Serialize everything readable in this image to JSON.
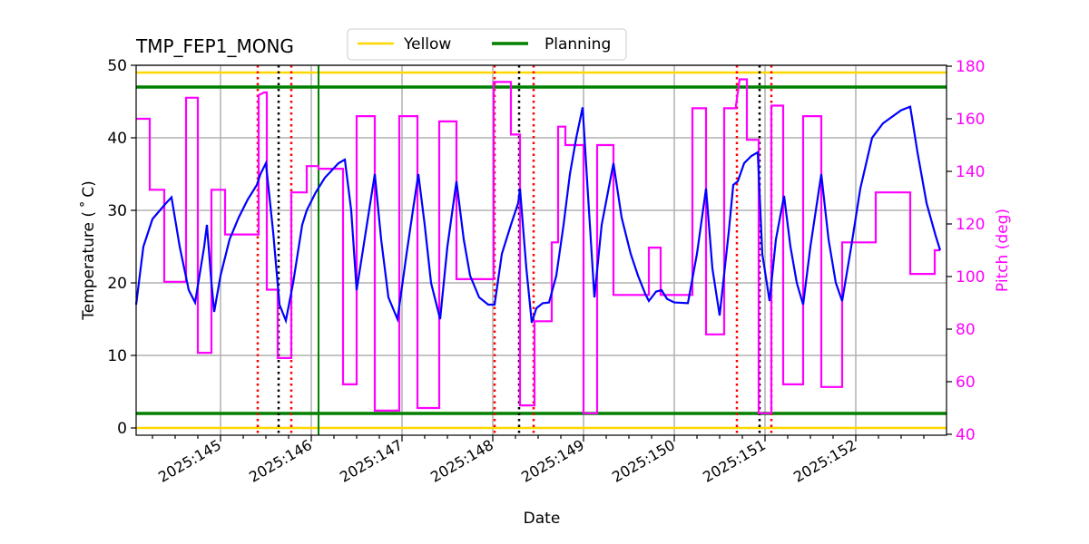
{
  "chart_data": {
    "type": "line",
    "title": "TMP_FEP1_MONG",
    "xlabel": "Date",
    "ylabel": "Temperature ($^\\circ$C)",
    "ylabel_display": "Temperature ( ˚ C)",
    "y2label": "Pitch (deg)",
    "xlim_days": [
      144.07,
      152.93
    ],
    "ylim": [
      -1,
      50
    ],
    "y2lim": [
      40,
      180
    ],
    "x_ticks": [
      "2025:145",
      "2025:146",
      "2025:147",
      "2025:148",
      "2025:149",
      "2025:150",
      "2025:151",
      "2025:152"
    ],
    "x_tick_days": [
      145,
      146,
      147,
      148,
      149,
      150,
      151,
      152
    ],
    "y_ticks": [
      0,
      10,
      20,
      30,
      40,
      50
    ],
    "y2_ticks": [
      40,
      60,
      80,
      100,
      120,
      140,
      160,
      180
    ],
    "grid": true,
    "legend": {
      "position": "top-center",
      "entries": [
        {
          "label": "Yellow",
          "color": "#ffd700"
        },
        {
          "label": "Planning",
          "color": "#008000"
        }
      ]
    },
    "colors": {
      "temperature": "#0000ff",
      "pitch": "#ff00ff",
      "yellow": "#ffd700",
      "planning": "#008000",
      "red_marker": "#ff0000",
      "black_marker": "#000000",
      "grid": "#b0b0b0"
    },
    "limits": {
      "yellow": [
        0,
        49
      ],
      "planning": [
        2,
        47
      ]
    },
    "vertical_markers": {
      "red_dotted_days": [
        145.41,
        145.78,
        148.02,
        148.45,
        150.69,
        151.07
      ],
      "black_dotted_days": [
        145.64,
        148.29,
        150.94
      ],
      "green_solid_days": [
        146.08
      ]
    },
    "series": [
      {
        "name": "Temperature",
        "axis": "left",
        "color": "#0000ff",
        "points": [
          [
            144.07,
            17
          ],
          [
            144.15,
            25
          ],
          [
            144.25,
            28.8
          ],
          [
            144.4,
            31
          ],
          [
            144.46,
            31.8
          ],
          [
            144.55,
            25
          ],
          [
            144.65,
            19
          ],
          [
            144.72,
            17.3
          ],
          [
            144.82,
            25
          ],
          [
            144.85,
            28
          ],
          [
            144.9,
            20
          ],
          [
            144.93,
            16
          ],
          [
            145.0,
            21
          ],
          [
            145.1,
            26
          ],
          [
            145.2,
            29
          ],
          [
            145.3,
            31.5
          ],
          [
            145.4,
            33.5
          ],
          [
            145.44,
            35
          ],
          [
            145.5,
            36.5
          ],
          [
            145.58,
            27
          ],
          [
            145.65,
            17
          ],
          [
            145.72,
            14.8
          ],
          [
            145.8,
            20
          ],
          [
            145.9,
            28
          ],
          [
            145.95,
            30
          ],
          [
            146.05,
            32.5
          ],
          [
            146.15,
            34.5
          ],
          [
            146.3,
            36.5
          ],
          [
            146.37,
            37
          ],
          [
            146.44,
            30
          ],
          [
            146.5,
            19
          ],
          [
            146.6,
            27
          ],
          [
            146.7,
            35
          ],
          [
            146.77,
            26
          ],
          [
            146.85,
            18
          ],
          [
            146.95,
            15
          ],
          [
            147.05,
            24
          ],
          [
            147.12,
            30
          ],
          [
            147.18,
            35
          ],
          [
            147.25,
            28
          ],
          [
            147.32,
            20
          ],
          [
            147.4,
            16
          ],
          [
            147.42,
            15
          ],
          [
            147.5,
            25
          ],
          [
            147.6,
            34
          ],
          [
            147.68,
            26
          ],
          [
            147.75,
            21
          ],
          [
            147.85,
            18
          ],
          [
            147.95,
            17
          ],
          [
            148.02,
            17
          ],
          [
            148.1,
            24
          ],
          [
            148.2,
            28
          ],
          [
            148.28,
            31
          ],
          [
            148.3,
            33
          ],
          [
            148.37,
            22
          ],
          [
            148.43,
            14.5
          ],
          [
            148.48,
            16.5
          ],
          [
            148.55,
            17.2
          ],
          [
            148.62,
            17.3
          ],
          [
            148.7,
            21
          ],
          [
            148.78,
            28
          ],
          [
            148.85,
            35
          ],
          [
            148.92,
            40
          ],
          [
            148.99,
            44.2
          ],
          [
            149.05,
            32
          ],
          [
            149.12,
            18
          ],
          [
            149.2,
            28
          ],
          [
            149.33,
            36.5
          ],
          [
            149.42,
            29
          ],
          [
            149.52,
            24
          ],
          [
            149.6,
            21
          ],
          [
            149.68,
            18.5
          ],
          [
            149.72,
            17.5
          ],
          [
            149.8,
            18.8
          ],
          [
            149.86,
            19
          ],
          [
            149.92,
            17.8
          ],
          [
            150.0,
            17.3
          ],
          [
            150.15,
            17.2
          ],
          [
            150.25,
            24
          ],
          [
            150.35,
            33
          ],
          [
            150.42,
            22
          ],
          [
            150.5,
            15.5
          ],
          [
            150.6,
            27
          ],
          [
            150.65,
            33.5
          ],
          [
            150.7,
            34
          ],
          [
            150.77,
            36.5
          ],
          [
            150.85,
            37.5
          ],
          [
            150.92,
            38
          ],
          [
            150.97,
            24
          ],
          [
            151.05,
            17.5
          ],
          [
            151.12,
            26
          ],
          [
            151.21,
            32
          ],
          [
            151.28,
            25
          ],
          [
            151.35,
            20
          ],
          [
            151.42,
            17
          ],
          [
            151.5,
            25
          ],
          [
            151.62,
            35
          ],
          [
            151.7,
            26
          ],
          [
            151.78,
            20
          ],
          [
            151.85,
            17.5
          ],
          [
            151.95,
            25
          ],
          [
            152.05,
            33
          ],
          [
            152.18,
            40
          ],
          [
            152.3,
            42
          ],
          [
            152.5,
            43.8
          ],
          [
            152.6,
            44.3
          ],
          [
            152.68,
            38
          ],
          [
            152.78,
            31
          ],
          [
            152.88,
            26.5
          ],
          [
            152.93,
            24.5
          ]
        ]
      },
      {
        "name": "Pitch",
        "axis": "right",
        "color": "#ff00ff",
        "points": [
          [
            144.07,
            160
          ],
          [
            144.22,
            160
          ],
          [
            144.22,
            133
          ],
          [
            144.38,
            133
          ],
          [
            144.38,
            98
          ],
          [
            144.62,
            98
          ],
          [
            144.62,
            168
          ],
          [
            144.75,
            168
          ],
          [
            144.75,
            71
          ],
          [
            144.9,
            71
          ],
          [
            144.9,
            133
          ],
          [
            145.05,
            133
          ],
          [
            145.05,
            116
          ],
          [
            145.42,
            116
          ],
          [
            145.42,
            169
          ],
          [
            145.48,
            170
          ],
          [
            145.51,
            170
          ],
          [
            145.51,
            95
          ],
          [
            145.63,
            95
          ],
          [
            145.63,
            69
          ],
          [
            145.78,
            69
          ],
          [
            145.78,
            132
          ],
          [
            145.95,
            132
          ],
          [
            145.95,
            142
          ],
          [
            146.08,
            142
          ],
          [
            146.08,
            141
          ],
          [
            146.35,
            141
          ],
          [
            146.35,
            59
          ],
          [
            146.5,
            59
          ],
          [
            146.5,
            161
          ],
          [
            146.7,
            161
          ],
          [
            146.7,
            49
          ],
          [
            146.97,
            49
          ],
          [
            146.97,
            161
          ],
          [
            147.17,
            161
          ],
          [
            147.17,
            50
          ],
          [
            147.41,
            50
          ],
          [
            147.41,
            159
          ],
          [
            147.6,
            159
          ],
          [
            147.6,
            99
          ],
          [
            148.01,
            99
          ],
          [
            148.01,
            174
          ],
          [
            148.2,
            174
          ],
          [
            148.2,
            154
          ],
          [
            148.3,
            154
          ],
          [
            148.3,
            51
          ],
          [
            148.46,
            51
          ],
          [
            148.46,
            83
          ],
          [
            148.65,
            83
          ],
          [
            148.65,
            113
          ],
          [
            148.72,
            113
          ],
          [
            148.72,
            157
          ],
          [
            148.8,
            157
          ],
          [
            148.8,
            150
          ],
          [
            149.0,
            150
          ],
          [
            149.0,
            48
          ],
          [
            149.15,
            48
          ],
          [
            149.15,
            150
          ],
          [
            149.33,
            150
          ],
          [
            149.33,
            93
          ],
          [
            149.72,
            93
          ],
          [
            149.72,
            111
          ],
          [
            149.85,
            111
          ],
          [
            149.85,
            93
          ],
          [
            150.2,
            93
          ],
          [
            150.2,
            164
          ],
          [
            150.35,
            164
          ],
          [
            150.35,
            78
          ],
          [
            150.55,
            78
          ],
          [
            150.55,
            164
          ],
          [
            150.68,
            164
          ],
          [
            150.68,
            165
          ],
          [
            150.72,
            175
          ],
          [
            150.8,
            175
          ],
          [
            150.8,
            152
          ],
          [
            150.93,
            152
          ],
          [
            150.93,
            48
          ],
          [
            151.07,
            48
          ],
          [
            151.07,
            165
          ],
          [
            151.2,
            165
          ],
          [
            151.2,
            59
          ],
          [
            151.42,
            59
          ],
          [
            151.42,
            161
          ],
          [
            151.62,
            161
          ],
          [
            151.62,
            58
          ],
          [
            151.85,
            58
          ],
          [
            151.85,
            113
          ],
          [
            152.22,
            113
          ],
          [
            152.22,
            132
          ],
          [
            152.6,
            132
          ],
          [
            152.6,
            101
          ],
          [
            152.87,
            101
          ],
          [
            152.87,
            110
          ],
          [
            152.93,
            110
          ]
        ]
      }
    ]
  }
}
